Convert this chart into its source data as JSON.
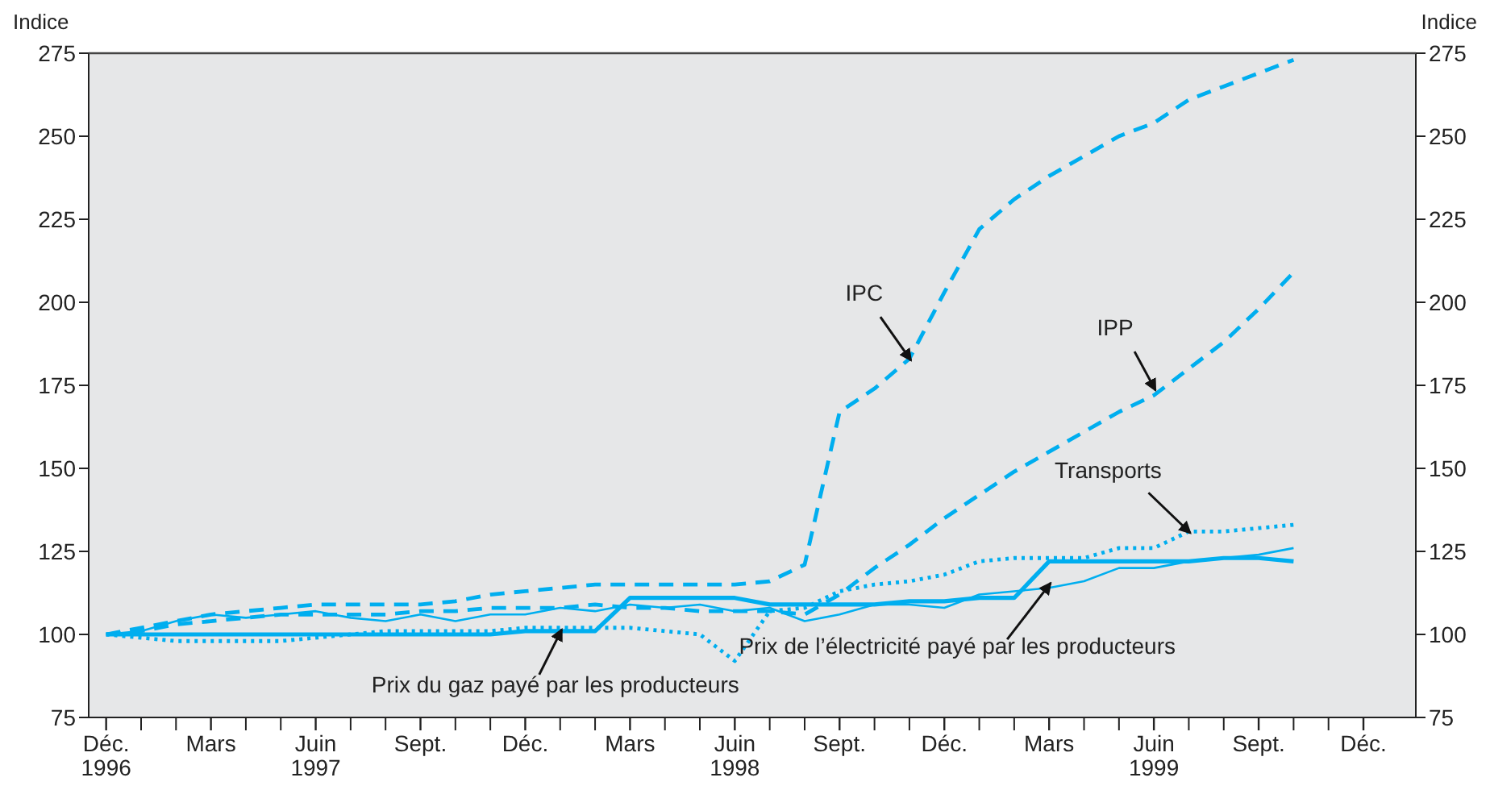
{
  "chart_data": {
    "type": "line",
    "ylabel": "Indice",
    "y2label": "Indice",
    "x": [
      "1996-12",
      "1997-01",
      "1997-02",
      "1997-03",
      "1997-04",
      "1997-05",
      "1997-06",
      "1997-07",
      "1997-08",
      "1997-09",
      "1997-10",
      "1997-11",
      "1997-12",
      "1998-01",
      "1998-02",
      "1998-03",
      "1998-04",
      "1998-05",
      "1998-06",
      "1998-07",
      "1998-08",
      "1998-09",
      "1998-10",
      "1998-11",
      "1998-12",
      "1999-01",
      "1999-02",
      "1999-03",
      "1999-04",
      "1999-05",
      "1999-06",
      "1999-07",
      "1999-08",
      "1999-09",
      "1999-10"
    ],
    "series": [
      {
        "color": "#00aeef",
        "line_style": "dashed",
        "values": [
          100,
          102,
          104,
          106,
          107,
          108,
          109,
          109,
          109,
          109,
          110,
          112,
          113,
          114,
          115,
          115,
          115,
          115,
          115,
          116,
          121,
          167,
          174,
          183,
          203,
          222,
          231,
          238,
          244,
          250,
          254,
          261,
          265,
          269,
          273
        ]
      },
      {
        "color": "#00aeef",
        "line_style": "dashed",
        "values": [
          100,
          101,
          103,
          104,
          105,
          106,
          106,
          106,
          106,
          107,
          107,
          108,
          108,
          108,
          109,
          108,
          108,
          107,
          107,
          107,
          106,
          112,
          120,
          127,
          135,
          142,
          149,
          155,
          161,
          167,
          172,
          180,
          188,
          198,
          209
        ]
      },
      {
        "color": "#00aeef",
        "line_style": "dotted",
        "values": [
          100,
          99,
          98,
          98,
          98,
          98,
          99,
          100,
          101,
          101,
          101,
          101,
          102,
          102,
          102,
          102,
          101,
          100,
          92,
          107,
          108,
          113,
          115,
          116,
          118,
          122,
          123,
          123,
          123,
          126,
          126,
          131,
          131,
          132,
          133
        ]
      },
      {
        "color": "#00aeef",
        "line_style": "solid",
        "values": [
          100,
          100,
          100,
          100,
          100,
          100,
          100,
          100,
          100,
          100,
          100,
          100,
          101,
          101,
          101,
          111,
          111,
          111,
          111,
          109,
          109,
          109,
          109,
          110,
          110,
          111,
          111,
          122,
          122,
          122,
          122,
          122,
          123,
          123,
          122
        ]
      },
      {
        "color": "#00aeef",
        "line_style": "solid",
        "values": [
          100,
          101,
          104,
          106,
          105,
          106,
          107,
          105,
          104,
          106,
          104,
          106,
          106,
          108,
          107,
          109,
          108,
          109,
          107,
          108,
          104,
          106,
          109,
          109,
          108,
          112,
          113,
          114,
          116,
          120,
          120,
          122,
          123,
          124,
          126
        ]
      }
    ],
    "xlim": [
      "1996-11-16",
      "2000-01-16"
    ],
    "xticks": [
      {
        "value": "1996-12",
        "label": "Déc.\n1996"
      },
      {
        "value": "1997-01",
        "label": null
      },
      {
        "value": "1997-02",
        "label": null
      },
      {
        "value": "1997-03",
        "label": "Mars"
      },
      {
        "value": "1997-04",
        "label": null
      },
      {
        "value": "1997-05",
        "label": null
      },
      {
        "value": "1997-06",
        "label": "Juin\n1997"
      },
      {
        "value": "1997-07",
        "label": null
      },
      {
        "value": "1997-08",
        "label": null
      },
      {
        "value": "1997-09",
        "label": "Sept."
      },
      {
        "value": "1997-10",
        "label": null
      },
      {
        "value": "1997-11",
        "label": null
      },
      {
        "value": "1997-12",
        "label": "Déc."
      },
      {
        "value": "1998-01",
        "label": null
      },
      {
        "value": "1998-02",
        "label": null
      },
      {
        "value": "1998-03",
        "label": "Mars"
      },
      {
        "value": "1998-04",
        "label": null
      },
      {
        "value": "1998-05",
        "label": null
      },
      {
        "value": "1998-06",
        "label": "Juin\n1998"
      },
      {
        "value": "1998-07",
        "label": null
      },
      {
        "value": "1998-08",
        "label": null
      },
      {
        "value": "1998-09",
        "label": "Sept."
      },
      {
        "value": "1998-10",
        "label": null
      },
      {
        "value": "1998-11",
        "label": null
      },
      {
        "value": "1998-12",
        "label": "Déc."
      },
      {
        "value": "1999-01",
        "label": null
      },
      {
        "value": "1999-02",
        "label": null
      },
      {
        "value": "1999-03",
        "label": "Mars"
      },
      {
        "value": "1999-04",
        "label": null
      },
      {
        "value": "1999-05",
        "label": null
      },
      {
        "value": "1999-06",
        "label": "Juin\n1999"
      },
      {
        "value": "1999-07",
        "label": null
      },
      {
        "value": "1999-08",
        "label": null
      },
      {
        "value": "1999-09",
        "label": "Sept."
      },
      {
        "value": "1999-10",
        "label": null
      },
      {
        "value": "1999-11",
        "label": null
      },
      {
        "value": "1999-12",
        "label": "Déc."
      }
    ],
    "ylim": [
      75,
      275
    ],
    "yticks": [
      75,
      100,
      125,
      150,
      175,
      200,
      225,
      250,
      275
    ],
    "y2lim": [
      75,
      275
    ],
    "y2ticks": [
      75,
      100,
      125,
      150,
      175,
      200,
      225,
      250,
      275
    ],
    "grid": false,
    "annotations": [
      {
        "text": "IPC",
        "x": "1998-11",
        "y": 183
      },
      {
        "text": "IPP",
        "x": "1999-06",
        "y": 174
      },
      {
        "text": "Transports",
        "x": "1999-07",
        "y": 131
      },
      {
        "text": "Prix du gaz payé par les producteurs",
        "x": "1998-01",
        "y": 101
      },
      {
        "text": "Prix de l’électricité payé par les producteurs",
        "x": "1999-03",
        "y": 115
      }
    ]
  }
}
